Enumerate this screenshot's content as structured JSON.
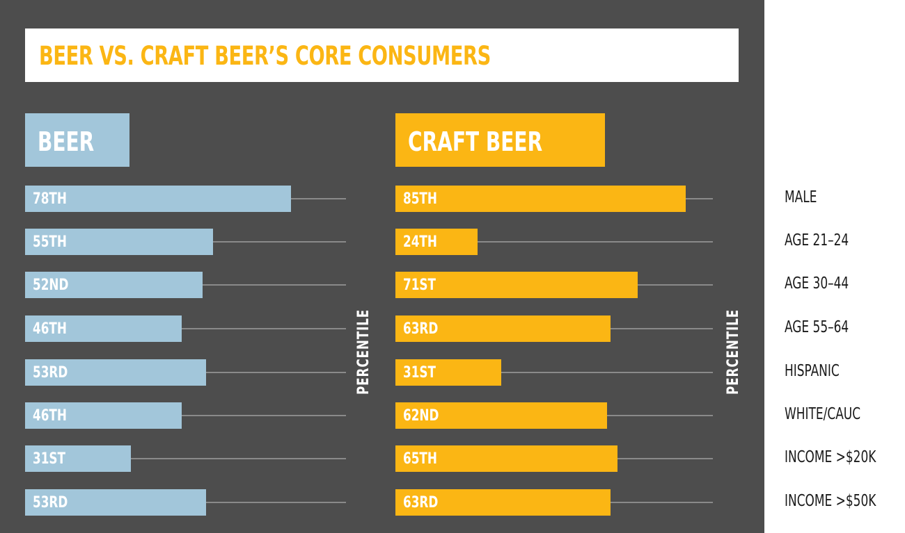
{
  "title": "BEER VS. CRAFT BEER’S CORE CONSUMERS",
  "series_headers": {
    "beer": "BEER",
    "craft": "CRAFT BEER"
  },
  "axis_label": "PERCENTILE",
  "colors": {
    "background": "#4d4d4d",
    "beer": "#a2c6da",
    "craft": "#fbb614",
    "title": "#fbb614",
    "track": "#8a8a8a"
  },
  "categories": [
    "MALE",
    "AGE 21–24",
    "AGE 30–44",
    "AGE 55–64",
    "HISPANIC",
    "WHITE/CAUC",
    "INCOME >$20K",
    "INCOME >$50K"
  ],
  "beer_labels": [
    "78TH",
    "55TH",
    "52ND",
    "46TH",
    "53RD",
    "46TH",
    "31ST",
    "53RD"
  ],
  "craft_labels": [
    "85TH",
    "24TH",
    "71ST",
    "63RD",
    "31ST",
    "62ND",
    "65TH",
    "63RD"
  ],
  "chart_data": {
    "type": "bar",
    "orientation": "horizontal",
    "title": "BEER VS. CRAFT BEER’S CORE CONSUMERS",
    "xlabel": "PERCENTILE",
    "ylabel": "",
    "categories": [
      "MALE",
      "AGE 21–24",
      "AGE 30–44",
      "AGE 55–64",
      "HISPANIC",
      "WHITE/CAUC",
      "INCOME >$20K",
      "INCOME >$50K"
    ],
    "series": [
      {
        "name": "BEER",
        "values": [
          78,
          55,
          52,
          46,
          53,
          46,
          31,
          53
        ],
        "labels": [
          "78TH",
          "55TH",
          "52ND",
          "46TH",
          "53RD",
          "46TH",
          "31ST",
          "53RD"
        ],
        "color": "#a2c6da"
      },
      {
        "name": "CRAFT BEER",
        "values": [
          85,
          24,
          71,
          63,
          31,
          62,
          65,
          63
        ],
        "labels": [
          "85TH",
          "24TH",
          "71ST",
          "63RD",
          "31ST",
          "62ND",
          "65TH",
          "63RD"
        ],
        "color": "#fbb614"
      }
    ],
    "xlim": [
      0,
      94
    ],
    "grid": false,
    "legend": "panel headers above each series"
  }
}
